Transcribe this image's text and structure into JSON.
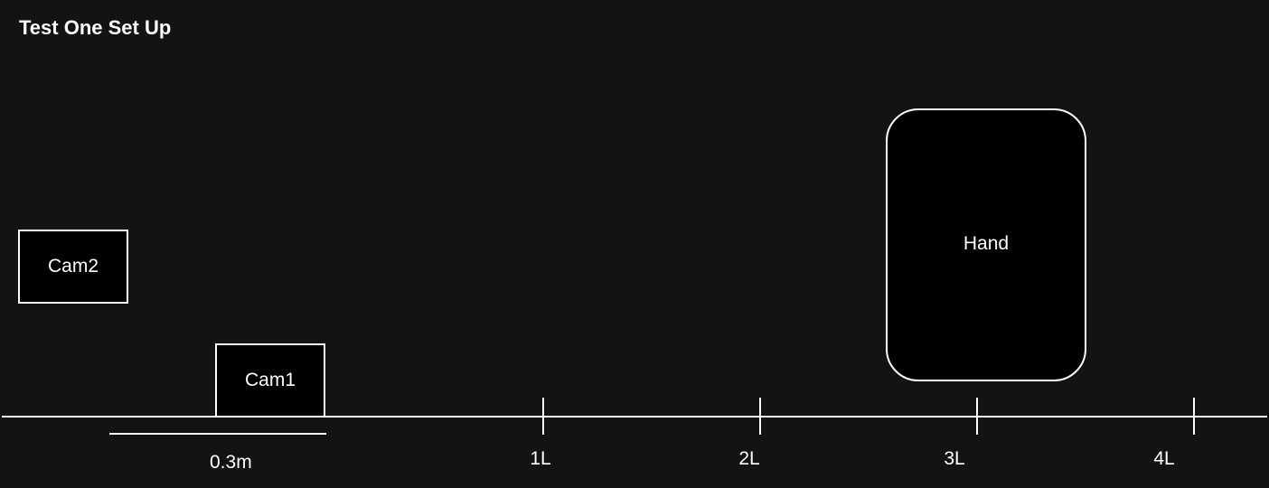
{
  "title": "Test One Set Up",
  "cameras": {
    "cam2_label": "Cam2",
    "cam1_label": "Cam1"
  },
  "hand_label": "Hand",
  "scale": {
    "label": "0.3m"
  },
  "ticks": [
    "1L",
    "2L",
    "3L",
    "4L"
  ],
  "colors": {
    "background": "#131313",
    "box_fill": "#000000",
    "stroke": "#ffffff",
    "text": "#ffffff"
  }
}
